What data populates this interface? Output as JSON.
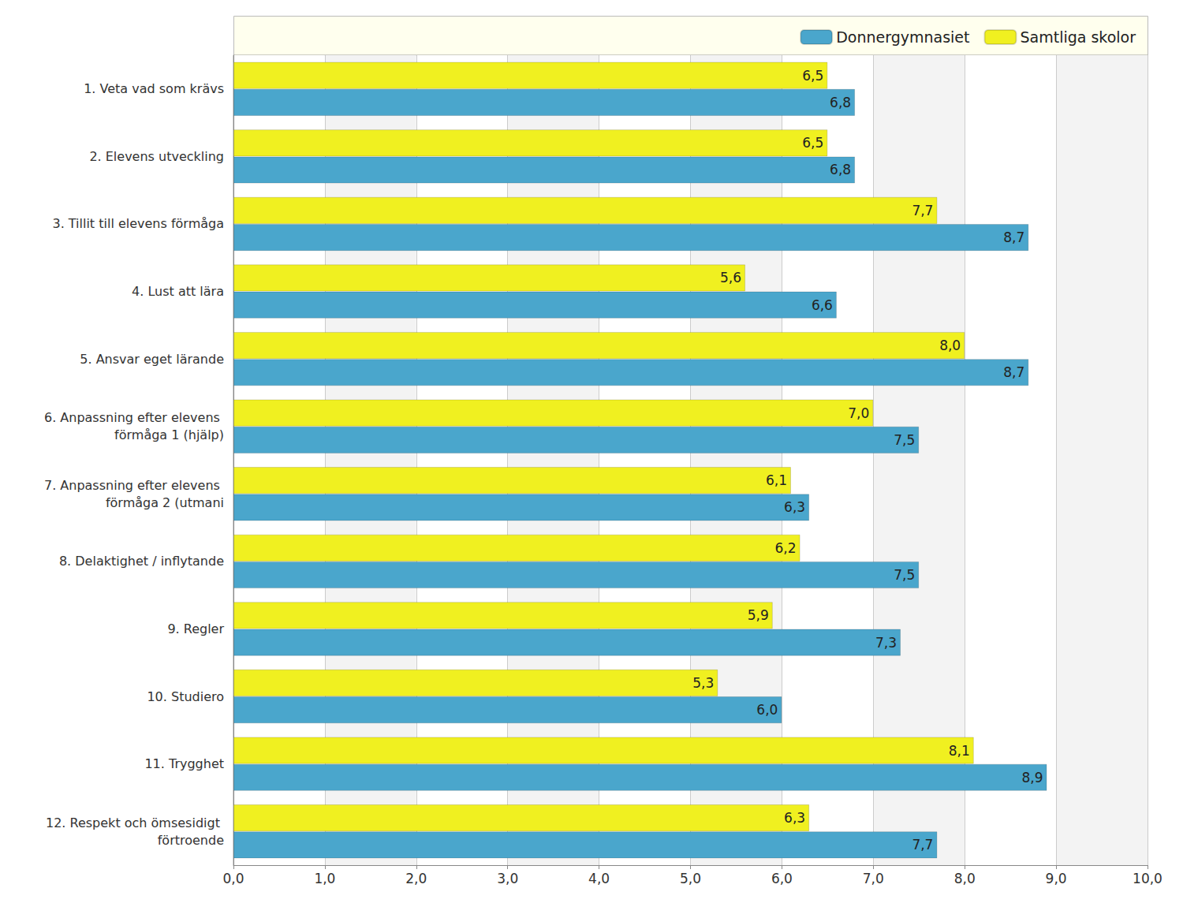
{
  "chart_data": {
    "type": "bar",
    "orientation": "horizontal",
    "categories": [
      "1. Veta vad som krävs",
      "2. Elevens utveckling",
      "3. Tillit till elevens förmåga",
      "4. Lust att lära",
      "5. Ansvar eget lärande",
      "6. Anpassning efter elevens förmåga 1 (hjälp)",
      "7. Anpassning efter elevens förmåga 2 (utmani",
      "8. Delaktighet / inflytande",
      "9. Regler",
      "10. Studiero",
      "11. Trygghet",
      "12. Respekt och ömsesidigt förtroende"
    ],
    "series": [
      {
        "name": "Donnergymnasiet",
        "color": "#4aa6cc",
        "values": [
          6.8,
          6.8,
          8.7,
          6.6,
          8.7,
          7.5,
          6.3,
          7.5,
          7.3,
          6.0,
          8.9,
          7.7
        ],
        "value_labels": [
          "6,8",
          "6,8",
          "8,7",
          "6,6",
          "8,7",
          "7,5",
          "6,3",
          "7,5",
          "7,3",
          "6,0",
          "8,9",
          "7,7"
        ]
      },
      {
        "name": "Samtliga skolor",
        "color": "#f0f020",
        "values": [
          6.5,
          6.5,
          7.7,
          5.6,
          8.0,
          7.0,
          6.1,
          6.2,
          5.9,
          5.3,
          8.1,
          6.3
        ],
        "value_labels": [
          "6,5",
          "6,5",
          "7,7",
          "5,6",
          "8,0",
          "7,0",
          "6,1",
          "6,2",
          "5,9",
          "5,3",
          "8,1",
          "6,3"
        ]
      }
    ],
    "xlim": [
      0,
      10
    ],
    "xticks": [
      {
        "value": 0,
        "label": "0,0"
      },
      {
        "value": 1,
        "label": "1,0"
      },
      {
        "value": 2,
        "label": "2,0"
      },
      {
        "value": 3,
        "label": "3,0"
      },
      {
        "value": 4,
        "label": "4,0"
      },
      {
        "value": 5,
        "label": "5,0"
      },
      {
        "value": 6,
        "label": "6,0"
      },
      {
        "value": 7,
        "label": "7,0"
      },
      {
        "value": 8,
        "label": "8,0"
      },
      {
        "value": 9,
        "label": "9,0"
      },
      {
        "value": 10,
        "label": "10,0"
      }
    ],
    "grid": true,
    "legend": "top-right",
    "data_labels": true
  }
}
